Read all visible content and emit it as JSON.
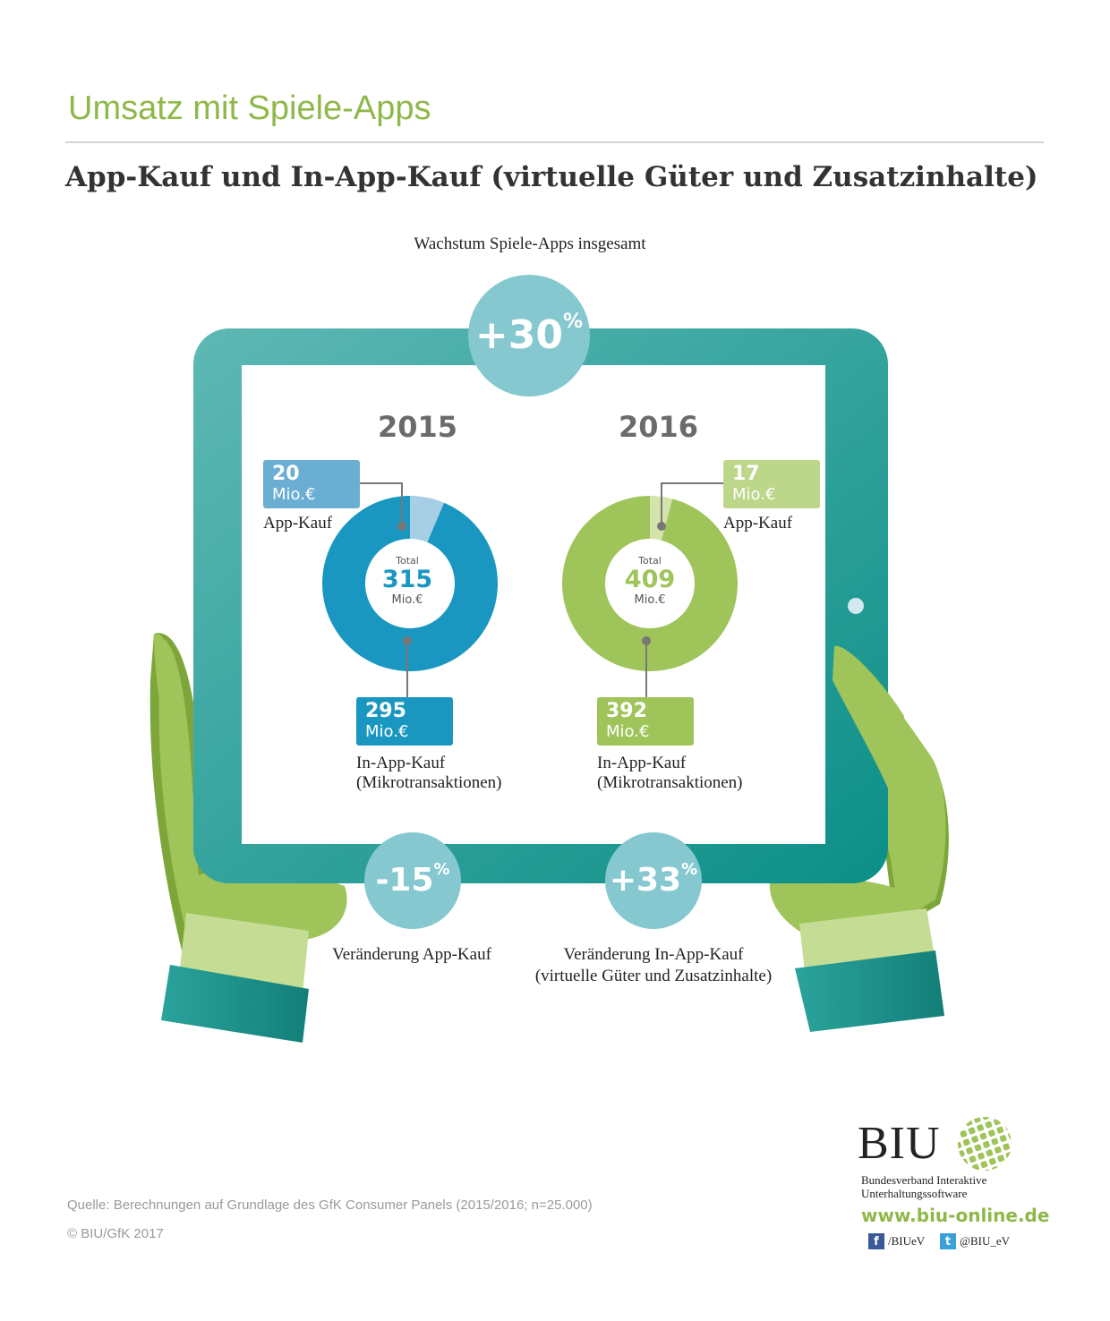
{
  "header": {
    "title": "Umsatz mit Spiele-Apps",
    "subtitle": "App-Kauf und In-App-Kauf (virtuelle Güter und Zusatzinhalte)"
  },
  "growth": {
    "label": "Wachstum Spiele-Apps insgesamt",
    "value": "+30",
    "unit": "%"
  },
  "chart_data": [
    {
      "type": "pie",
      "title": "2015",
      "categories": [
        "App-Kauf",
        "In-App-Kauf (Mikrotransaktionen)"
      ],
      "values": [
        20,
        295
      ],
      "unit": "Mio.€",
      "total": 315,
      "total_label": "Total",
      "colors": [
        "#a6cfe6",
        "#1997c1"
      ]
    },
    {
      "type": "pie",
      "title": "2016",
      "categories": [
        "App-Kauf",
        "In-App-Kauf (Mikrotransaktionen)"
      ],
      "values": [
        17,
        392
      ],
      "unit": "Mio.€",
      "total": 409,
      "total_label": "Total",
      "colors": [
        "#d4e3ab",
        "#9fc45a"
      ]
    }
  ],
  "labels": {
    "y2015": {
      "app_value": "20",
      "app_unit": "Mio.€",
      "app_label": "App-Kauf",
      "inapp_value": "295",
      "inapp_unit": "Mio.€",
      "inapp_label_1": "In-App-Kauf",
      "inapp_label_2": "(Mikrotransaktionen)",
      "total_label": "Total",
      "total_value": "315",
      "total_unit": "Mio.€"
    },
    "y2016": {
      "app_value": "17",
      "app_unit": "Mio.€",
      "app_label": "App-Kauf",
      "inapp_value": "392",
      "inapp_unit": "Mio.€",
      "inapp_label_1": "In-App-Kauf",
      "inapp_label_2": "(Mikrotransaktionen)",
      "total_label": "Total",
      "total_value": "409",
      "total_unit": "Mio.€"
    }
  },
  "changes": {
    "app": {
      "value": "-15",
      "unit": "%",
      "label": "Veränderung App-Kauf"
    },
    "inapp": {
      "value": "+33",
      "unit": "%",
      "label_1": "Veränderung In-App-Kauf",
      "label_2": "(virtuelle Güter und Zusatzinhalte)"
    }
  },
  "footer": {
    "source": "Quelle: Berechnungen auf Grundlage des GfK Consumer Panels (2015/2016; n=25.000)",
    "copyright": "© BIU/GfK 2017",
    "logo_text": "BIU",
    "org_line_1": "Bundesverband Interaktive",
    "org_line_2": "Unterhaltungssoftware",
    "url": "www.biu-online.de",
    "facebook": "/BIUeV",
    "twitter": "@BIU_eV",
    "facebook_icon": "f",
    "twitter_icon": "t"
  },
  "colors": {
    "accent_green": "#8fb84a",
    "tablet_teal": "#1f9d98",
    "bubble_blue": "#86c8d0",
    "series_blue": "#1997c1",
    "series_green": "#9fc45a"
  }
}
